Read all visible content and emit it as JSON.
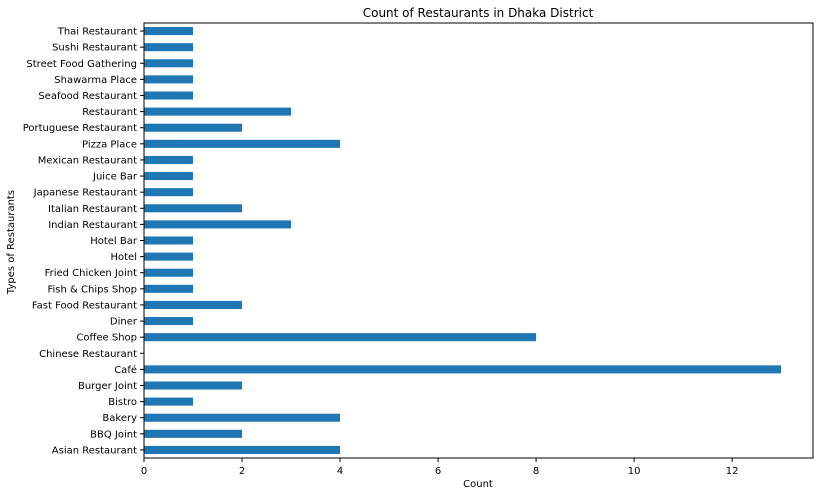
{
  "chart_data": {
    "type": "bar",
    "orientation": "horizontal",
    "title": "Count of Restaurants in Dhaka District",
    "xlabel": "Count",
    "ylabel": "Types of Restaurants",
    "categories": [
      "Asian Restaurant",
      "BBQ Joint",
      "Bakery",
      "Bistro",
      "Burger Joint",
      "Café",
      "Chinese Restaurant",
      "Coffee Shop",
      "Diner",
      "Fast Food Restaurant",
      "Fish & Chips Shop",
      "Fried Chicken Joint",
      "Hotel",
      "Hotel Bar",
      "Indian Restaurant",
      "Italian Restaurant",
      "Japanese Restaurant",
      "Juice Bar",
      "Mexican Restaurant",
      "Pizza Place",
      "Portuguese Restaurant",
      "Restaurant",
      "Seafood Restaurant",
      "Shawarma Place",
      "Street Food Gathering",
      "Sushi Restaurant",
      "Thai Restaurant"
    ],
    "values": [
      4,
      2,
      4,
      1,
      2,
      13,
      0,
      8,
      1,
      2,
      1,
      1,
      1,
      1,
      3,
      2,
      1,
      1,
      1,
      4,
      2,
      3,
      1,
      1,
      1,
      1,
      1
    ],
    "xlim": [
      0,
      13.65
    ],
    "xticks": [
      0,
      2,
      4,
      6,
      8,
      10,
      12
    ],
    "grid": false,
    "bar_color": "#1f77b4"
  }
}
